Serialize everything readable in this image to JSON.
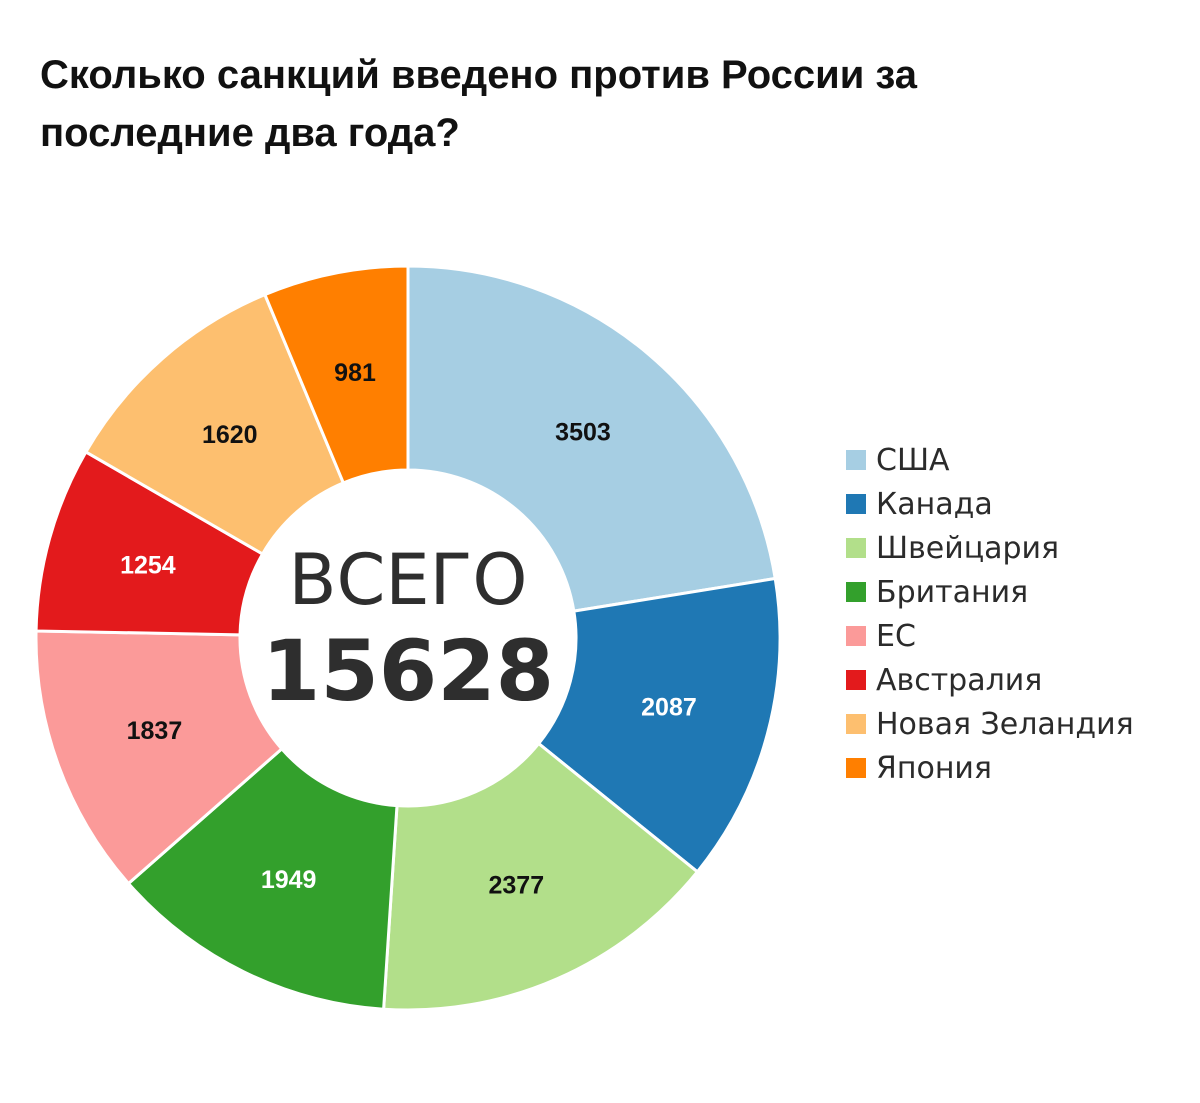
{
  "title": "Сколько санкций введено против России за последние два года?",
  "chart_data": {
    "type": "pie",
    "style": "donut",
    "title": "Сколько санкций введено против России за последние два года?",
    "center_caption": "ВСЕГО",
    "total": "15628",
    "legend_position": "right",
    "categories": [
      "США",
      "Канада",
      "Швейцария",
      "Британия",
      "ЕС",
      "Австралия",
      "Новая Зеландия",
      "Япония"
    ],
    "values": [
      3503,
      2087,
      2377,
      1949,
      1837,
      1254,
      1620,
      981
    ],
    "colors": [
      "#a6cee3",
      "#1f78b4",
      "#b2df8a",
      "#33a02c",
      "#fb9a99",
      "#e31a1c",
      "#fdbf6f",
      "#ff7f00"
    ],
    "label_colors": [
      "#111111",
      "#ffffff",
      "#111111",
      "#ffffff",
      "#111111",
      "#ffffff",
      "#111111",
      "#111111"
    ]
  }
}
